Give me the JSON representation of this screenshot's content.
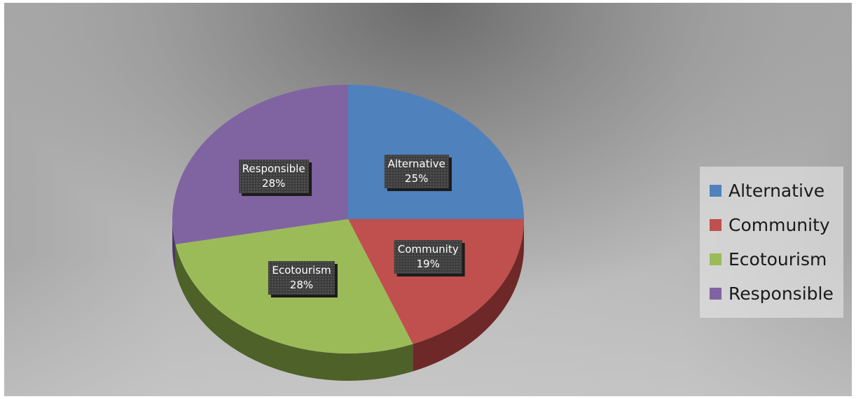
{
  "chart_data": {
    "type": "pie",
    "style": "3d",
    "title": "",
    "categories": [
      "Alternative",
      "Community",
      "Ecotourism",
      "Responsible"
    ],
    "values": [
      25,
      19,
      28,
      28
    ],
    "value_labels": [
      "25%",
      "19%",
      "28%",
      "28%"
    ],
    "colors": [
      "#4f81bd",
      "#c0504d",
      "#9bbb59",
      "#8064a2"
    ],
    "side_colors": [
      "#2f4d71",
      "#6e2828",
      "#4e6128",
      "#4a3a60"
    ],
    "legend": {
      "position": "right",
      "entries": [
        "Alternative",
        "Community",
        "Ecotourism",
        "Responsible"
      ]
    }
  }
}
